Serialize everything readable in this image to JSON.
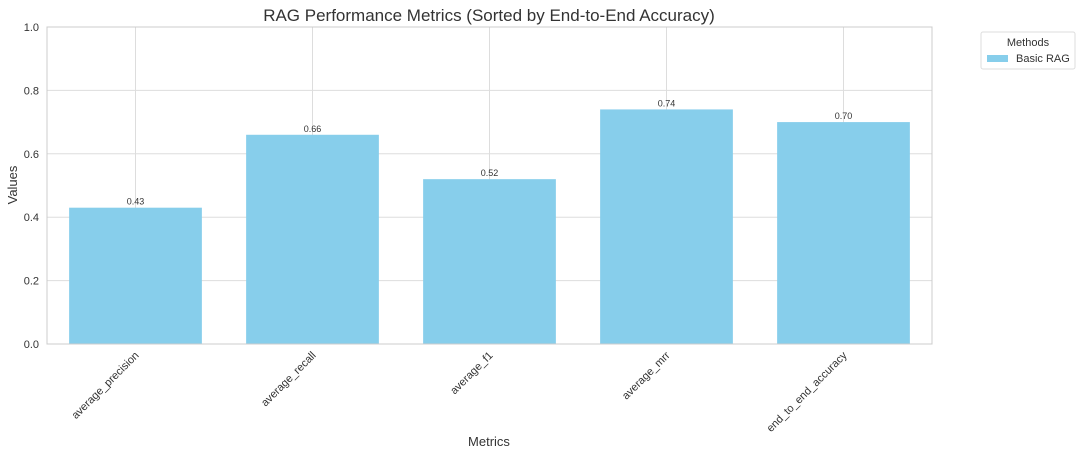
{
  "chart_data": {
    "type": "bar",
    "title": "RAG Performance Metrics (Sorted by End-to-End Accuracy)",
    "xlabel": "Metrics",
    "ylabel": "Values",
    "categories": [
      "average_precision",
      "average_recall",
      "average_f1",
      "average_mrr",
      "end_to_end_accuracy"
    ],
    "series": [
      {
        "name": "Basic RAG",
        "values": [
          0.43,
          0.66,
          0.52,
          0.74,
          0.7
        ],
        "color": "#87CEEB"
      }
    ],
    "data_labels": [
      "0.43",
      "0.66",
      "0.52",
      "0.74",
      "0.70"
    ],
    "ylim": [
      0,
      1.0
    ],
    "yticks": [
      "0.0",
      "0.2",
      "0.4",
      "0.6",
      "0.8",
      "1.0"
    ],
    "grid": true,
    "legend": {
      "title": "Methods",
      "placement": "outside-top-right"
    }
  }
}
